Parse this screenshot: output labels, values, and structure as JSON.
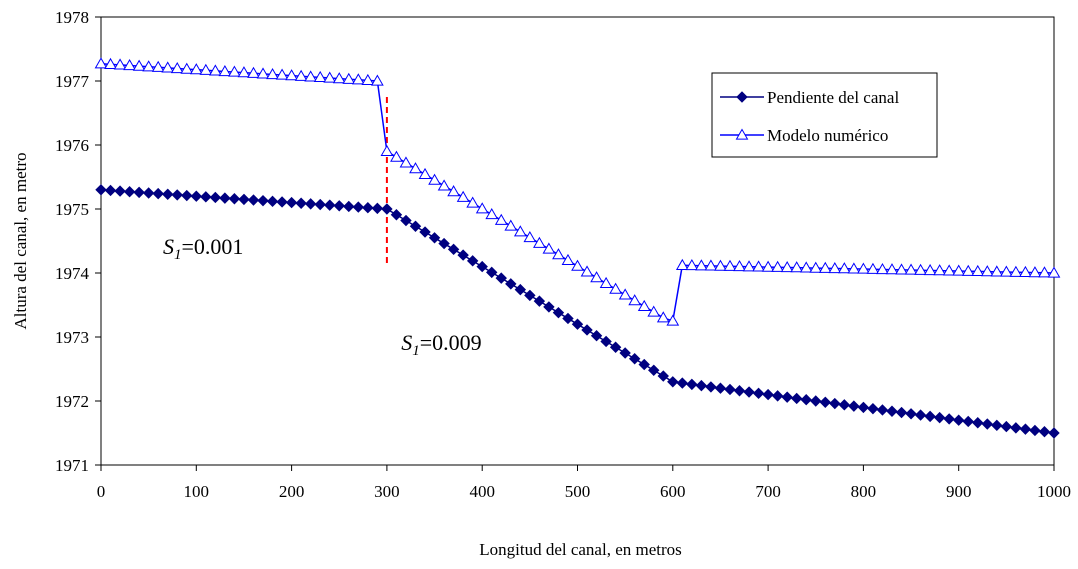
{
  "chart_data": {
    "type": "line",
    "xlabel": "Longitud del canal, en metros",
    "ylabel": "Altura del canal, en metro",
    "xlim": [
      0,
      1000
    ],
    "ylim": [
      1971,
      1978
    ],
    "xticks": [
      "0",
      "100",
      "200",
      "300",
      "400",
      "500",
      "600",
      "700",
      "800",
      "900",
      "1000"
    ],
    "yticks": [
      "1971",
      "1972",
      "1973",
      "1974",
      "1975",
      "1976",
      "1977",
      "1978"
    ],
    "grid": false,
    "legend_position": "top-right",
    "colors": {
      "pendiente": "#000080",
      "modelo": "#0000ff",
      "marker_line": "#ff0000"
    },
    "series": [
      {
        "name": "Pendiente del canal",
        "marker": "diamond",
        "segments": [
          {
            "x_start": 0,
            "x_end": 300,
            "y_start": 1975.3,
            "y_end": 1975.0
          },
          {
            "x_start": 300,
            "x_end": 600,
            "y_start": 1975.0,
            "y_end": 1972.3
          },
          {
            "x_start": 600,
            "x_end": 1000,
            "y_start": 1972.3,
            "y_end": 1971.5
          }
        ]
      },
      {
        "name": "Modelo numérico",
        "marker": "triangle-open",
        "segments": [
          {
            "x_start": 0,
            "x_end": 290,
            "y_start": 1977.27,
            "y_end": 1977.0
          },
          {
            "x_start": 300,
            "x_end": 590,
            "y_start": 1975.9,
            "y_end": 1973.3
          },
          {
            "x_start": 610,
            "x_end": 1000,
            "y_start": 1974.12,
            "y_end": 1974.0
          }
        ],
        "jumps": [
          {
            "x_from": 290,
            "y_from": 1977.0,
            "x_to": 300,
            "y_to": 1975.9
          },
          {
            "x_from": 590,
            "y_from": 1973.3,
            "x_to": 600,
            "y_to": 1973.25
          },
          {
            "x_from": 600,
            "y_from": 1973.25,
            "x_to": 610,
            "y_to": 1974.12
          }
        ]
      }
    ],
    "reference_line": {
      "x": 300,
      "y_range": [
        1974.15,
        1976.75
      ],
      "style": "dashed"
    },
    "annotations": [
      {
        "main": "S",
        "sub": "1",
        "rest": "=0.001",
        "x": 65,
        "y": 1974.3
      },
      {
        "main": "S",
        "sub": "1",
        "rest": "=0.009",
        "x": 315,
        "y": 1972.8
      }
    ]
  }
}
